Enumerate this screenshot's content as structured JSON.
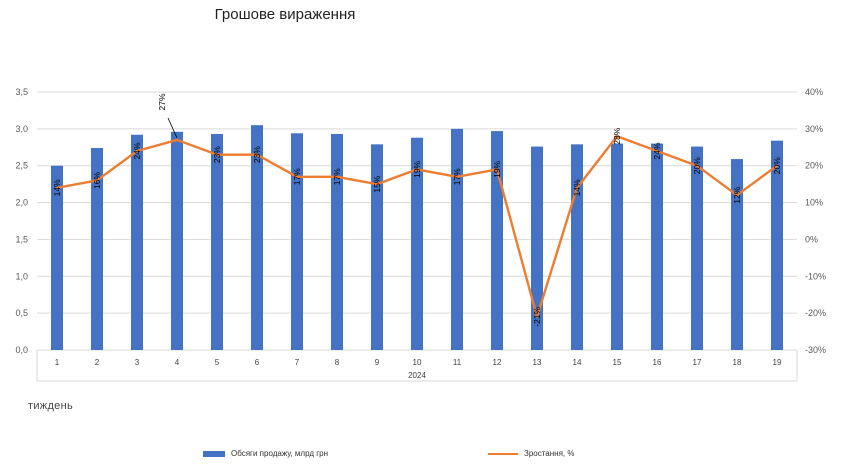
{
  "colors": {
    "bars": "#4472C4",
    "line": "#ED7D31",
    "grid": "#D9D9D9",
    "axis_text": "#595959"
  },
  "chart_data": {
    "type": "bar",
    "title": "Грошове вираження",
    "xlabel": "тиждень",
    "group_label": "2024",
    "categories": [
      "1",
      "2",
      "3",
      "4",
      "5",
      "6",
      "7",
      "8",
      "9",
      "10",
      "11",
      "12",
      "13",
      "14",
      "15",
      "16",
      "17",
      "18",
      "19"
    ],
    "y_left": {
      "ylim": [
        0,
        3.5
      ],
      "ticks": [
        "0,0",
        "0,5",
        "1,0",
        "1,5",
        "2,0",
        "2,5",
        "3,0",
        "3,5"
      ]
    },
    "y_right": {
      "ylim": [
        -30,
        40
      ],
      "ticks": [
        "-30%",
        "-20%",
        "-10%",
        "0%",
        "10%",
        "20%",
        "30%",
        "40%"
      ]
    },
    "series": [
      {
        "name": "Обсяги продажу, млрд грн",
        "type": "bar",
        "axis": "left",
        "values": [
          2.5,
          2.74,
          2.92,
          2.96,
          2.93,
          3.05,
          2.94,
          2.93,
          2.79,
          2.88,
          3.0,
          2.97,
          2.76,
          2.79,
          2.8,
          2.8,
          2.76,
          2.59,
          2.84
        ]
      },
      {
        "name": "Зростання, %",
        "type": "line",
        "axis": "right",
        "values": [
          14,
          16,
          24,
          27,
          23,
          23,
          17,
          17,
          15,
          19,
          17,
          19,
          -21,
          14,
          28,
          24,
          20,
          12,
          20
        ],
        "labels": [
          "14%",
          "16%",
          "24%",
          "27%",
          "23%",
          "23%",
          "17%",
          "17%",
          "15%",
          "19%",
          "17%",
          "19%",
          "-21%",
          "14%",
          "28%",
          "24%",
          "20%",
          "12%",
          "20%"
        ]
      }
    ],
    "grid": true,
    "legend": "bottom"
  }
}
